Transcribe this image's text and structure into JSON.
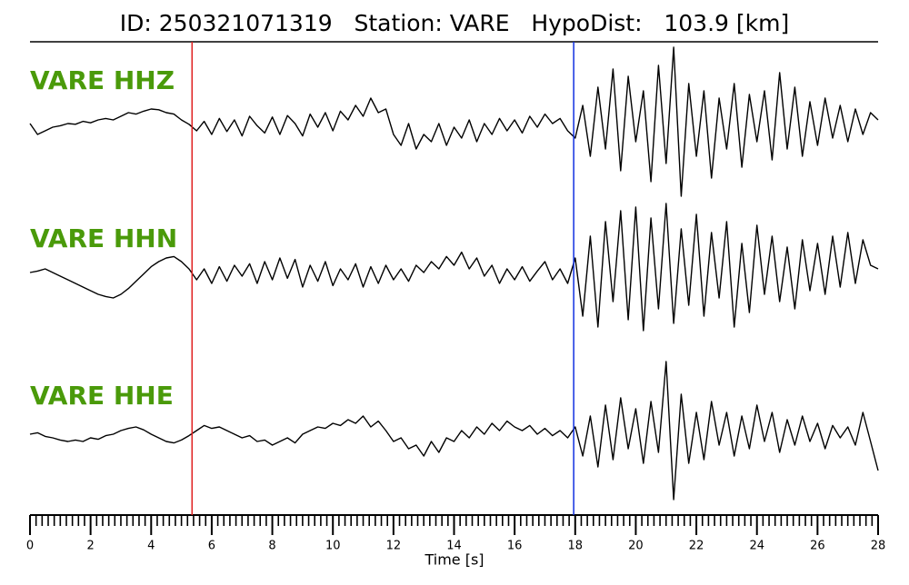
{
  "chart_data": {
    "type": "line",
    "title": "ID: 250321071319   Station: VARE   HypoDist:   103.9 [km]",
    "xlabel": "Time [s]",
    "xlim": [
      0,
      28
    ],
    "xticks": [
      0,
      2,
      4,
      6,
      8,
      10,
      12,
      14,
      16,
      18,
      20,
      22,
      24,
      26,
      28
    ],
    "xminorticks": [
      0.2,
      0.4,
      0.6,
      0.8,
      1,
      1.2,
      1.4,
      1.6,
      1.8,
      2.2,
      2.4,
      2.6,
      2.8,
      3,
      3.2,
      3.4,
      3.6,
      3.8,
      4.2,
      4.4,
      4.6,
      4.8,
      5,
      5.2,
      5.4,
      5.6,
      5.8,
      6.2,
      6.4,
      6.6,
      6.8,
      7,
      7.2,
      7.4,
      7.6,
      7.8,
      8.2,
      8.4,
      8.6,
      8.8,
      9,
      9.2,
      9.4,
      9.6,
      9.8,
      10.2,
      10.4,
      10.6,
      10.8,
      11,
      11.2,
      11.4,
      11.6,
      11.8,
      12.2,
      12.4,
      12.6,
      12.8,
      13,
      13.2,
      13.4,
      13.6,
      13.8,
      14.2,
      14.4,
      14.6,
      14.8,
      15,
      15.2,
      15.4,
      15.6,
      15.8,
      16.2,
      16.4,
      16.6,
      16.8,
      17,
      17.2,
      17.4,
      17.6,
      17.8,
      18.2,
      18.4,
      18.6,
      18.8,
      19,
      19.2,
      19.4,
      19.6,
      19.8,
      20.2,
      20.4,
      20.6,
      20.8,
      21,
      21.2,
      21.4,
      21.6,
      21.8,
      22.2,
      22.4,
      22.6,
      22.8,
      23,
      23.2,
      23.4,
      23.6,
      23.8,
      24.2,
      24.4,
      24.6,
      24.8,
      25,
      25.2,
      25.4,
      25.6,
      25.8,
      26.2,
      26.4,
      26.6,
      26.8,
      27,
      27.2,
      27.4,
      27.6,
      27.8
    ],
    "markers": [
      {
        "x": 5.35,
        "color": "#e02020"
      },
      {
        "x": 17.95,
        "color": "#1030e0"
      }
    ],
    "x": [
      0,
      0.25,
      0.5,
      0.75,
      1,
      1.25,
      1.5,
      1.75,
      2,
      2.25,
      2.5,
      2.75,
      3,
      3.25,
      3.5,
      3.75,
      4,
      4.25,
      4.5,
      4.75,
      5,
      5.25,
      5.5,
      5.75,
      6,
      6.25,
      6.5,
      6.75,
      7,
      7.25,
      7.5,
      7.75,
      8,
      8.25,
      8.5,
      8.75,
      9,
      9.25,
      9.5,
      9.75,
      10,
      10.25,
      10.5,
      10.75,
      11,
      11.25,
      11.5,
      11.75,
      12,
      12.25,
      12.5,
      12.75,
      13,
      13.25,
      13.5,
      13.75,
      14,
      14.25,
      14.5,
      14.75,
      15,
      15.25,
      15.5,
      15.75,
      16,
      16.25,
      16.5,
      16.75,
      17,
      17.25,
      17.5,
      17.75,
      18,
      18.25,
      18.5,
      18.75,
      19,
      19.25,
      19.5,
      19.75,
      20,
      20.25,
      20.5,
      20.75,
      21,
      21.25,
      21.5,
      21.75,
      22,
      22.25,
      22.5,
      22.75,
      23,
      23.25,
      23.5,
      23.75,
      24,
      24.25,
      24.5,
      24.75,
      25,
      25.25,
      25.5,
      25.75,
      26,
      26.25,
      26.5,
      26.75,
      27,
      27.25,
      27.5,
      27.75,
      28
    ],
    "series": [
      {
        "name": "VARE HHZ",
        "color": "#000000",
        "values": [
          0.05,
          -0.1,
          -0.05,
          0.0,
          0.02,
          0.05,
          0.04,
          0.08,
          0.06,
          0.1,
          0.12,
          0.1,
          0.15,
          0.2,
          0.18,
          0.22,
          0.25,
          0.24,
          0.2,
          0.18,
          0.1,
          0.04,
          -0.05,
          0.08,
          -0.1,
          0.12,
          -0.06,
          0.1,
          -0.12,
          0.15,
          0.02,
          -0.08,
          0.14,
          -0.1,
          0.16,
          0.05,
          -0.12,
          0.18,
          0.0,
          0.2,
          -0.05,
          0.22,
          0.1,
          0.3,
          0.15,
          0.4,
          0.2,
          0.25,
          -0.1,
          -0.25,
          0.05,
          -0.3,
          -0.1,
          -0.2,
          0.05,
          -0.25,
          0.0,
          -0.15,
          0.1,
          -0.2,
          0.05,
          -0.1,
          0.12,
          -0.05,
          0.1,
          -0.08,
          0.15,
          0.0,
          0.18,
          0.05,
          0.12,
          -0.05,
          -0.15,
          0.3,
          -0.4,
          0.55,
          -0.3,
          0.8,
          -0.6,
          0.7,
          -0.2,
          0.5,
          -0.75,
          0.85,
          -0.5,
          1.1,
          -0.95,
          0.6,
          -0.4,
          0.5,
          -0.7,
          0.4,
          -0.3,
          0.6,
          -0.55,
          0.45,
          -0.2,
          0.5,
          -0.45,
          0.75,
          -0.3,
          0.55,
          -0.4,
          0.35,
          -0.25,
          0.4,
          -0.15,
          0.3,
          -0.2,
          0.25,
          -0.1,
          0.2,
          0.1
        ]
      },
      {
        "name": "VARE HHN",
        "color": "#000000",
        "values": [
          0.0,
          0.02,
          0.05,
          0.0,
          -0.05,
          -0.1,
          -0.15,
          -0.2,
          -0.25,
          -0.3,
          -0.33,
          -0.35,
          -0.3,
          -0.22,
          -0.12,
          -0.02,
          0.08,
          0.15,
          0.2,
          0.22,
          0.15,
          0.05,
          -0.1,
          0.05,
          -0.15,
          0.08,
          -0.12,
          0.1,
          -0.05,
          0.12,
          -0.15,
          0.15,
          -0.1,
          0.2,
          -0.08,
          0.18,
          -0.2,
          0.1,
          -0.12,
          0.15,
          -0.18,
          0.05,
          -0.1,
          0.12,
          -0.2,
          0.08,
          -0.15,
          0.1,
          -0.1,
          0.05,
          -0.12,
          0.1,
          0.0,
          0.15,
          0.05,
          0.22,
          0.1,
          0.28,
          0.05,
          0.2,
          -0.05,
          0.1,
          -0.15,
          0.05,
          -0.1,
          0.08,
          -0.12,
          0.02,
          0.15,
          -0.1,
          0.05,
          -0.15,
          0.2,
          -0.6,
          0.5,
          -0.75,
          0.7,
          -0.4,
          0.85,
          -0.65,
          0.9,
          -0.8,
          0.75,
          -0.5,
          0.95,
          -0.7,
          0.6,
          -0.45,
          0.8,
          -0.6,
          0.55,
          -0.35,
          0.7,
          -0.75,
          0.4,
          -0.55,
          0.65,
          -0.3,
          0.5,
          -0.4,
          0.35,
          -0.5,
          0.45,
          -0.25,
          0.4,
          -0.3,
          0.5,
          -0.2,
          0.55,
          -0.15,
          0.45,
          0.1,
          0.05
        ]
      },
      {
        "name": "VARE HHE",
        "color": "#000000",
        "values": [
          0.0,
          0.02,
          -0.03,
          -0.05,
          -0.08,
          -0.1,
          -0.08,
          -0.1,
          -0.05,
          -0.07,
          -0.02,
          0.0,
          0.05,
          0.08,
          0.1,
          0.06,
          0.0,
          -0.05,
          -0.1,
          -0.12,
          -0.08,
          -0.02,
          0.05,
          0.12,
          0.08,
          0.1,
          0.05,
          0.0,
          -0.05,
          -0.02,
          -0.1,
          -0.08,
          -0.15,
          -0.1,
          -0.05,
          -0.12,
          0.0,
          0.05,
          0.1,
          0.08,
          0.15,
          0.12,
          0.2,
          0.15,
          0.25,
          0.1,
          0.18,
          0.05,
          -0.1,
          -0.05,
          -0.2,
          -0.15,
          -0.3,
          -0.1,
          -0.25,
          -0.05,
          -0.1,
          0.05,
          -0.05,
          0.1,
          0.0,
          0.15,
          0.05,
          0.18,
          0.1,
          0.05,
          0.12,
          0.0,
          0.08,
          -0.02,
          0.05,
          -0.05,
          0.1,
          -0.3,
          0.25,
          -0.45,
          0.4,
          -0.35,
          0.5,
          -0.2,
          0.35,
          -0.4,
          0.45,
          -0.25,
          1.0,
          -0.9,
          0.55,
          -0.4,
          0.3,
          -0.35,
          0.45,
          -0.15,
          0.3,
          -0.3,
          0.25,
          -0.2,
          0.4,
          -0.1,
          0.3,
          -0.25,
          0.2,
          -0.15,
          0.25,
          -0.1,
          0.15,
          -0.2,
          0.12,
          -0.05,
          0.1,
          -0.15,
          0.3,
          -0.1,
          -0.5
        ]
      }
    ]
  }
}
